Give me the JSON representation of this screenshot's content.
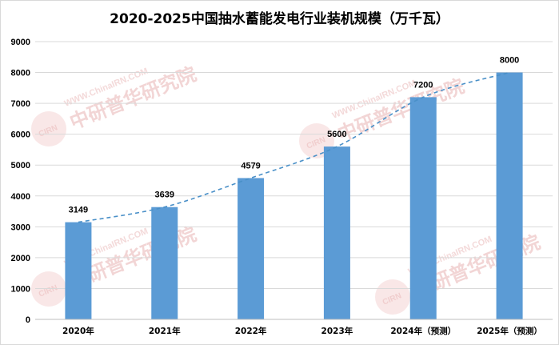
{
  "chart_data": {
    "type": "bar",
    "title": "2020-2025中国抽水蓄能发电行业装机规模（万千瓦）",
    "categories": [
      "2020年",
      "2021年",
      "2022年",
      "2023年",
      "2024年（预测）",
      "2025年（预测）"
    ],
    "values": [
      3149,
      3639,
      4579,
      5600,
      7200,
      8000
    ],
    "data_labels": [
      "3149",
      "3639",
      "4579",
      "5600",
      "7200",
      "8000"
    ],
    "ylim": [
      0,
      9000
    ],
    "yticks": [
      0,
      1000,
      2000,
      3000,
      4000,
      5000,
      6000,
      7000,
      8000,
      9000
    ],
    "ytick_labels": [
      "0",
      "1000",
      "2000",
      "3000",
      "4000",
      "5000",
      "6000",
      "7000",
      "8000",
      "9000"
    ],
    "grid": true,
    "trendline": "dashed",
    "colors": {
      "bar": "#5b9bd5",
      "trend": "#4a90c8",
      "grid": "#d9d9d9"
    }
  },
  "watermark": {
    "url": "WWW.ChinaIRN.COM",
    "name": "中研普华研究院",
    "logo": "CIRN"
  }
}
